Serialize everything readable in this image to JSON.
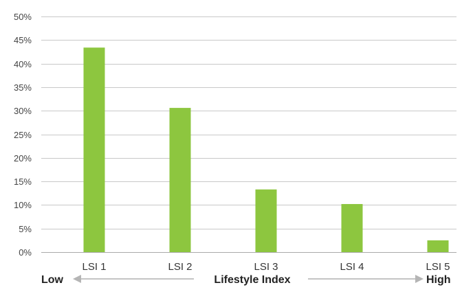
{
  "chart_data": {
    "type": "bar",
    "categories": [
      "LSI 1",
      "LSI 2",
      "LSI 3",
      "LSI 4",
      "LSI 5"
    ],
    "values": [
      43.4,
      30.6,
      13.3,
      10.2,
      2.5
    ],
    "ylim": [
      0,
      50
    ],
    "y_ticks": [
      "0%",
      "5%",
      "10%",
      "15%",
      "20%",
      "25%",
      "30%",
      "35%",
      "40%",
      "45%",
      "50%"
    ],
    "y_tick_values": [
      0,
      5,
      10,
      15,
      20,
      25,
      30,
      35,
      40,
      45,
      50
    ],
    "grid": true,
    "bar_color": "#8dc63f",
    "grid_color": "#c8c8c8",
    "axis_caption": {
      "low": "Low",
      "title": "Lifestyle Index",
      "high": "High"
    }
  }
}
